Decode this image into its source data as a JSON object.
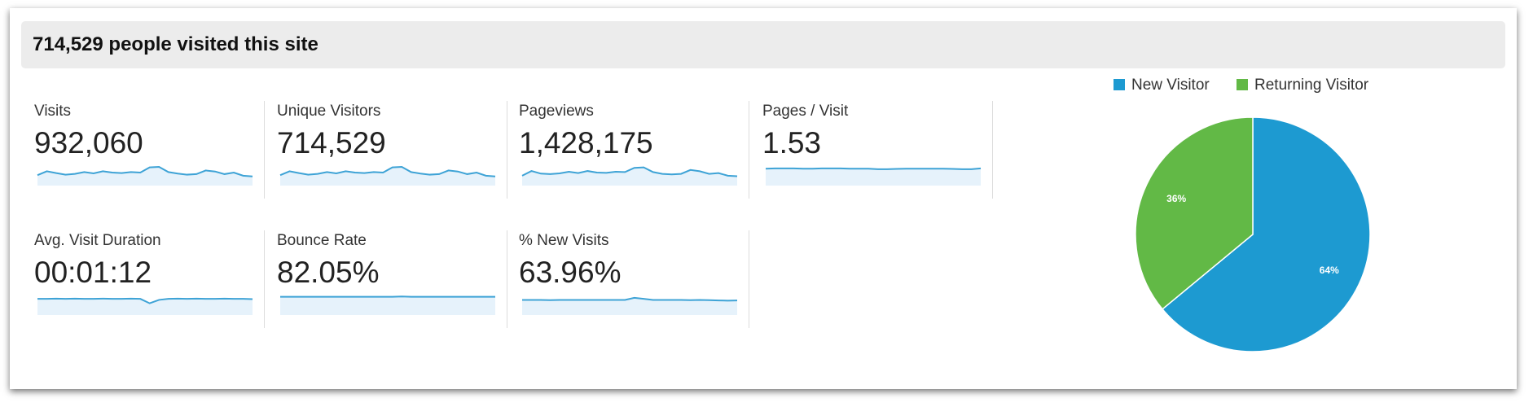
{
  "header": {
    "title": "714,529 people visited this site"
  },
  "metrics": [
    {
      "label": "Visits",
      "value": "932,060",
      "ylim": [
        0,
        100
      ],
      "spark": [
        40,
        55,
        48,
        42,
        45,
        52,
        47,
        55,
        50,
        48,
        52,
        50,
        70,
        72,
        52,
        46,
        42,
        44,
        58,
        54,
        44,
        50,
        38,
        35
      ]
    },
    {
      "label": "Unique Visitors",
      "value": "714,529",
      "ylim": [
        0,
        100
      ],
      "spark": [
        40,
        55,
        48,
        42,
        45,
        52,
        47,
        55,
        50,
        48,
        52,
        50,
        70,
        72,
        52,
        46,
        42,
        44,
        58,
        54,
        44,
        50,
        38,
        35
      ]
    },
    {
      "label": "Pageviews",
      "value": "1,428,175",
      "ylim": [
        0,
        100
      ],
      "spark": [
        38,
        56,
        46,
        44,
        47,
        53,
        48,
        56,
        50,
        49,
        53,
        52,
        68,
        70,
        52,
        45,
        43,
        45,
        60,
        55,
        45,
        48,
        38,
        36
      ]
    },
    {
      "label": "Pages / Visit",
      "value": "1.53",
      "ylim": [
        0,
        100
      ],
      "spark": [
        65,
        66,
        66,
        66,
        65,
        65,
        66,
        66,
        66,
        65,
        65,
        65,
        63,
        63,
        64,
        65,
        65,
        65,
        65,
        65,
        64,
        63,
        63,
        66
      ]
    },
    {
      "label": "Avg. Visit Duration",
      "value": "00:01:12",
      "ylim": [
        0,
        100
      ],
      "spark": [
        62,
        62,
        63,
        62,
        63,
        62,
        62,
        63,
        62,
        62,
        63,
        62,
        45,
        58,
        62,
        63,
        62,
        63,
        62,
        62,
        63,
        62,
        62,
        61
      ]
    },
    {
      "label": "Bounce Rate",
      "value": "82.05%",
      "ylim": [
        0,
        100
      ],
      "spark": [
        70,
        70,
        70,
        70,
        70,
        70,
        70,
        70,
        70,
        70,
        70,
        70,
        70,
        71,
        70,
        70,
        70,
        70,
        70,
        70,
        70,
        70,
        70,
        70
      ]
    },
    {
      "label": "% New Visits",
      "value": "63.96%",
      "ylim": [
        0,
        100
      ],
      "spark": [
        58,
        58,
        58,
        57,
        58,
        58,
        58,
        58,
        58,
        58,
        58,
        58,
        66,
        62,
        58,
        58,
        58,
        58,
        57,
        58,
        57,
        56,
        55,
        56
      ]
    }
  ],
  "chart_data": {
    "type": "pie",
    "categories": [
      "New Visitor",
      "Returning Visitor"
    ],
    "values": [
      64,
      36
    ],
    "value_labels": [
      "64%",
      "36%"
    ],
    "colors": [
      "#1d9ad1",
      "#62b946"
    ],
    "legend": "top"
  }
}
